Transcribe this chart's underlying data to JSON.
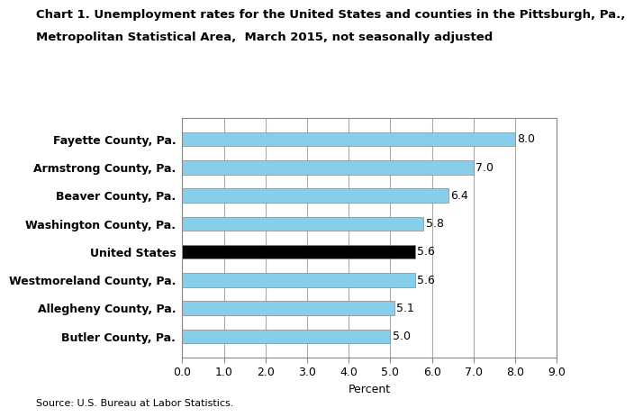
{
  "title_line1": "Chart 1. Unemployment rates for the United States and counties in the Pittsburgh, Pa.,",
  "title_line2": "Metropolitan Statistical Area,  March 2015, not seasonally adjusted",
  "categories": [
    "Butler County, Pa.",
    "Allegheny County, Pa.",
    "Westmoreland County, Pa.",
    "United States",
    "Washington County, Pa.",
    "Beaver County, Pa.",
    "Armstrong County, Pa.",
    "Fayette County, Pa."
  ],
  "values": [
    5.0,
    5.1,
    5.6,
    5.6,
    5.8,
    6.4,
    7.0,
    8.0
  ],
  "bar_colors": [
    "#87CEEB",
    "#87CEEB",
    "#87CEEB",
    "#000000",
    "#87CEEB",
    "#87CEEB",
    "#87CEEB",
    "#87CEEB"
  ],
  "xlabel": "Percent",
  "xlim": [
    0.0,
    9.0
  ],
  "xticks": [
    0.0,
    1.0,
    2.0,
    3.0,
    4.0,
    5.0,
    6.0,
    7.0,
    8.0,
    9.0
  ],
  "source": "Source: U.S. Bureau at Labor Statistics.",
  "label_color_dark": "#000000",
  "grid_color": "#aaaaaa",
  "title_fontsize": 9.5,
  "tick_fontsize": 9,
  "label_fontsize": 9,
  "source_fontsize": 8,
  "bar_height": 0.5,
  "bar_edge_color": "#888888",
  "bar_linewidth": 0.5
}
